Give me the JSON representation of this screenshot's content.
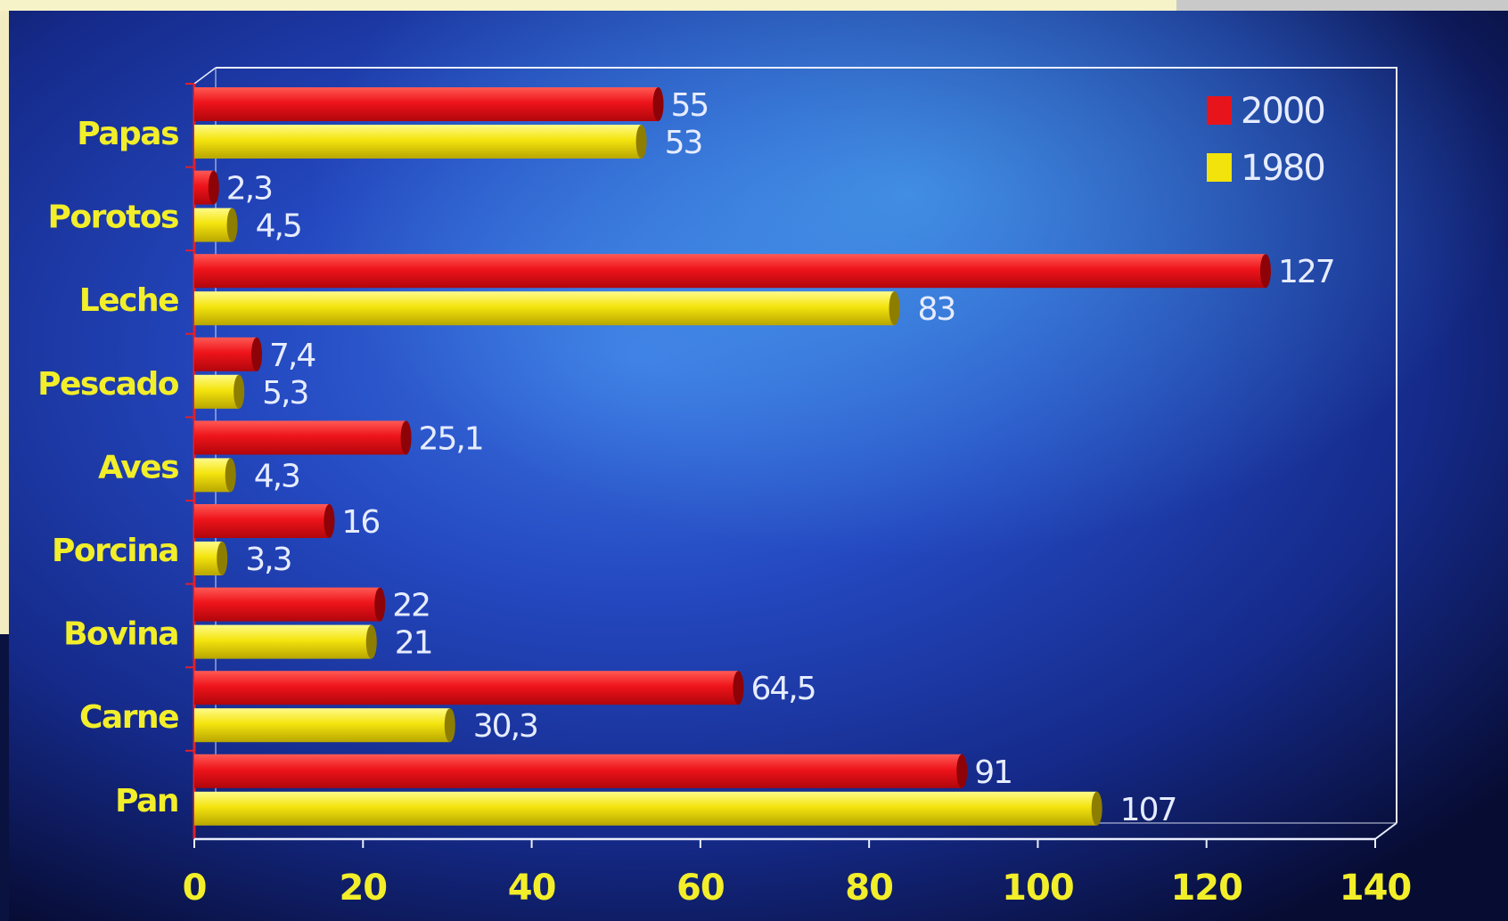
{
  "chart_data": {
    "type": "bar",
    "orientation": "horizontal",
    "categories": [
      "Papas",
      "Porotos",
      "Leche",
      "Pescado",
      "Aves",
      "Porcina",
      "Bovina",
      "Carne",
      "Pan"
    ],
    "series": [
      {
        "name": "2000",
        "color": "#e8141c",
        "values": [
          55,
          2.3,
          127,
          7.4,
          25.1,
          16,
          22,
          64.5,
          91
        ],
        "labels": [
          "55",
          "2,3",
          "127",
          "7,4",
          "25,1",
          "16",
          "22",
          "64,5",
          "91"
        ]
      },
      {
        "name": "1980",
        "color": "#f2e30c",
        "values": [
          53,
          4.5,
          83,
          5.3,
          4.3,
          3.3,
          21,
          30.3,
          107
        ],
        "labels": [
          "53",
          "4,5",
          "83",
          "5,3",
          "4,3",
          "3,3",
          "21",
          "30,3",
          "107"
        ]
      }
    ],
    "xlim": [
      0,
      140
    ],
    "xticks": [
      "0",
      "20",
      "40",
      "60",
      "80",
      "100",
      "120",
      "140"
    ],
    "legend_position": "top-right",
    "grid": false,
    "colors": {
      "category_label": "#f2ee2a",
      "tick_label": "#f2ee2a",
      "data_label": "#e6ecff",
      "frame": "#e8eefc"
    }
  }
}
